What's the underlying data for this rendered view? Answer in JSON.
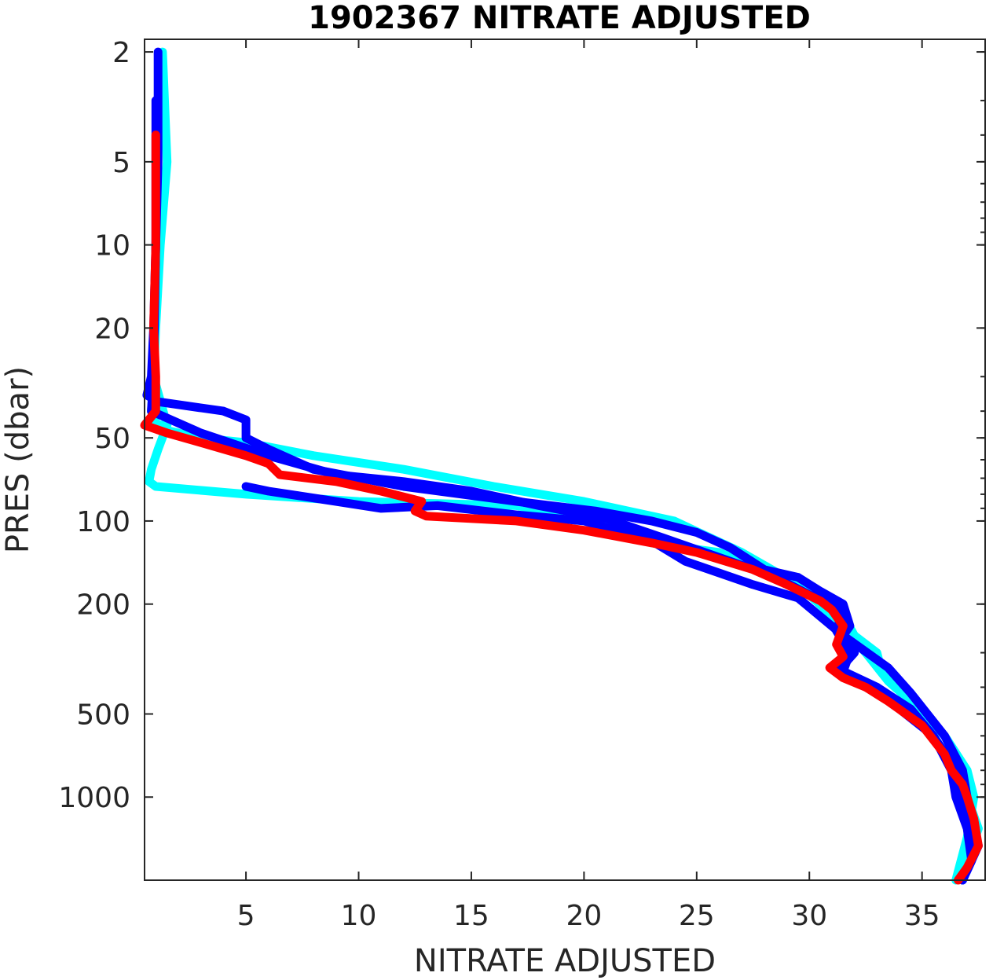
{
  "chart_data": {
    "type": "line",
    "title": "1902367  NITRATE ADJUSTED",
    "xlabel": "NITRATE ADJUSTED",
    "ylabel": "PRES (dbar)",
    "xlim": [
      0.5,
      37.8
    ],
    "ylim": [
      1.8,
      2000
    ],
    "y_scale": "log",
    "y_reversed": true,
    "grid": false,
    "x_ticks": [
      5,
      10,
      15,
      20,
      25,
      30,
      35
    ],
    "x_tick_labels": [
      "5",
      "10",
      "15",
      "20",
      "25",
      "30",
      "35"
    ],
    "y_ticks": [
      2,
      5,
      10,
      20,
      50,
      100,
      200,
      500,
      1000
    ],
    "y_tick_labels": [
      "2",
      "5",
      "10",
      "20",
      "50",
      "100",
      "200",
      "500",
      "1000"
    ],
    "series": [
      {
        "color": "#00FFFF",
        "x": [
          1.3,
          1.5,
          1.2,
          1.0,
          0.9,
          1.5,
          1.1,
          0.8,
          0.7,
          1.0,
          5.0,
          10.0,
          17.0,
          21.0,
          23.0,
          26.0,
          28.0,
          30.0,
          31.5,
          32.0,
          33.0,
          33.2,
          34.5,
          35.5,
          36.5,
          37.0,
          37.5,
          37.0,
          36.8
        ],
        "y": [
          2,
          5,
          10,
          20,
          30,
          45,
          55,
          65,
          72,
          75,
          80,
          85,
          88,
          100,
          120,
          130,
          150,
          180,
          220,
          260,
          300,
          350,
          450,
          600,
          800,
          1000,
          1300,
          1700,
          2000
        ]
      },
      {
        "color": "#00FFFF",
        "x": [
          1.1,
          1.0,
          0.9,
          0.8,
          1.0,
          1.5,
          3.0,
          5.0,
          8.0,
          12.0,
          16.0,
          20.0,
          24.0,
          27.0,
          29.5,
          31.0,
          32.5,
          33.5,
          34.5,
          36.0,
          37.0,
          37.3,
          37.0,
          36.5
        ],
        "y": [
          3,
          10,
          30,
          40,
          44,
          47,
          50,
          52,
          58,
          65,
          75,
          85,
          100,
          130,
          170,
          220,
          300,
          380,
          450,
          600,
          800,
          1000,
          1400,
          2000
        ]
      },
      {
        "color": "#0000FF",
        "x": [
          1.1,
          1.1,
          1.0,
          0.9,
          0.8,
          0.6,
          1.1,
          4.0,
          5.0,
          5.0,
          6.0,
          8.0,
          12.0,
          17.0,
          20.5,
          23.0,
          25.0,
          26.5,
          28.0,
          29.5,
          30.5,
          31.5,
          31.8,
          31.5,
          32.0,
          31.4,
          32.0,
          33.0,
          34.0,
          35.5,
          36.5,
          36.8,
          37.2,
          37.5,
          36.8
        ],
        "y": [
          2,
          5,
          10,
          20,
          30,
          35,
          37,
          40,
          43,
          50,
          55,
          65,
          75,
          85,
          92,
          100,
          110,
          125,
          150,
          160,
          180,
          200,
          240,
          260,
          300,
          340,
          380,
          420,
          480,
          600,
          800,
          1000,
          1200,
          1500,
          2000
        ]
      },
      {
        "color": "#0000FF",
        "x": [
          1.0,
          1.0,
          0.9,
          0.8,
          3.0,
          6.0,
          9.0,
          12.0,
          15.0,
          18.0,
          21.0,
          23.5,
          26.5,
          28.5,
          30.0,
          31.5,
          31.2,
          31.8,
          31.5,
          33.0,
          34.5,
          35.5,
          36.3,
          36.5,
          37.0,
          37.2,
          36.8
        ],
        "y": [
          3,
          10,
          30,
          40,
          48,
          58,
          68,
          72,
          78,
          88,
          98,
          115,
          140,
          160,
          185,
          210,
          250,
          300,
          350,
          400,
          480,
          600,
          800,
          1000,
          1300,
          1700,
          2000
        ]
      },
      {
        "color": "#0000FF",
        "x": [
          5.0,
          6.0,
          9.0,
          11.0,
          13.5,
          17.0,
          20.0,
          23.0,
          24.5,
          27.5,
          29.5,
          31.5,
          33.5,
          34.5,
          36.0,
          36.8,
          37.0
        ],
        "y": [
          75,
          78,
          85,
          90,
          88,
          95,
          100,
          118,
          140,
          170,
          190,
          260,
          340,
          420,
          600,
          800,
          1000
        ]
      },
      {
        "color": "#FF0000",
        "x": [
          1.0,
          1.0,
          0.9,
          1.0,
          1.0,
          0.5,
          1.5,
          3.0,
          5.0,
          6.0,
          6.5,
          9.0,
          11.0,
          12.8,
          12.5,
          13.0,
          17.0,
          20.0,
          23.0,
          25.0,
          27.5,
          29.0,
          30.5,
          31.0,
          31.5,
          31.2,
          31.5,
          30.9,
          31.5,
          32.5,
          33.5,
          35.0,
          36.0,
          36.3,
          36.8,
          37.0,
          37.3,
          37.5,
          37.0,
          36.6
        ],
        "y": [
          4,
          10,
          20,
          30,
          40,
          45,
          48,
          52,
          58,
          62,
          68,
          72,
          78,
          85,
          92,
          96,
          100,
          108,
          120,
          130,
          150,
          170,
          195,
          210,
          240,
          280,
          310,
          340,
          370,
          400,
          450,
          550,
          700,
          800,
          900,
          1000,
          1200,
          1500,
          1800,
          2000
        ]
      }
    ]
  }
}
